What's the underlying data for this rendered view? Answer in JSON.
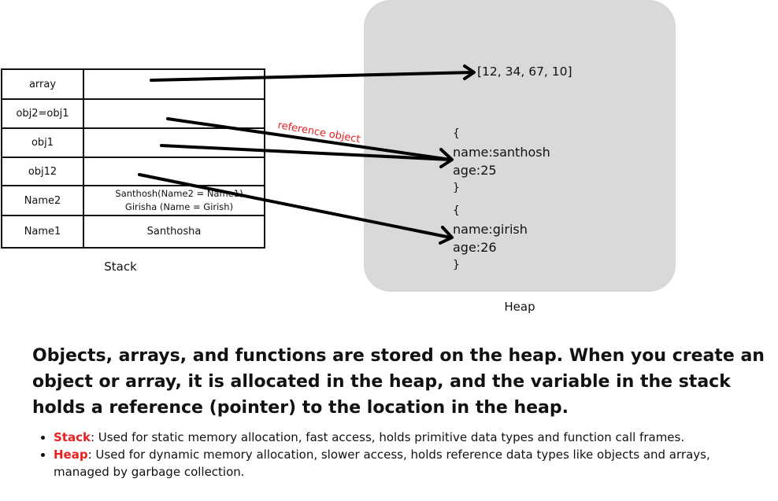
{
  "diagram": {
    "stack": {
      "label": "Stack",
      "rows": [
        {
          "name": "array",
          "value": ""
        },
        {
          "name": "obj2=obj1",
          "value": ""
        },
        {
          "name": "obj1",
          "value": ""
        },
        {
          "name": "obj12",
          "value": ""
        },
        {
          "name": "Name2",
          "value_lines": [
            "Santhosh(Name2 = Name1)",
            "Girisha (Name = Girish)"
          ]
        },
        {
          "name": "Name1",
          "value": "Santhosha"
        }
      ]
    },
    "heap": {
      "label": "Heap",
      "array_value": "[12, 34, 67, 10]",
      "objects": [
        {
          "open": "{",
          "lines": [
            "name:santhosh",
            "age:25"
          ],
          "close": "}"
        },
        {
          "open": "{",
          "lines": [
            "name:girish",
            "age:26"
          ],
          "close": "}"
        }
      ]
    },
    "arrow_label": "reference object",
    "colors": {
      "heap_background": "#d9d9d9",
      "accent_red": "#e8201f",
      "line": "#000000"
    }
  },
  "text": {
    "headline": "Objects, arrays, and functions are stored on the heap. When you create an object or array, it is allocated in the heap, and the variable in the stack holds a reference (pointer) to the location in the heap.",
    "bullets": [
      {
        "term": "Stack",
        "desc": ": Used for static memory allocation, fast access, holds primitive data types and function call frames."
      },
      {
        "term": "Heap",
        "desc": ": Used for dynamic memory allocation, slower access, holds reference data types like objects and arrays, managed by garbage collection."
      }
    ]
  }
}
